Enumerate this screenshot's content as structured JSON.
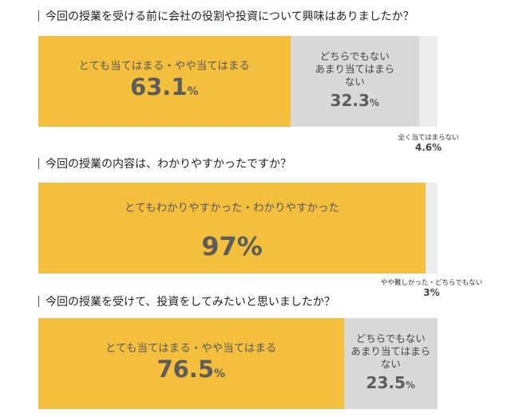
{
  "chart_data": [
    {
      "type": "bar",
      "title": "今回の授業を受ける前に会社の役割や投資について興味はありましたか？",
      "categories": [
        "とても当てはまる・やや当てはまる",
        "どちらでもない あまり当てはまらない",
        "全く当てはまらない"
      ],
      "values": [
        63.1,
        32.3,
        4.6
      ],
      "labels": [
        "63.1",
        "32.3",
        "4.6"
      ],
      "unit": "%",
      "category_lines": [
        [
          "とても当てはまる・やや当てはまる"
        ],
        [
          "どちらでもない",
          "あまり当てはまら",
          "ない"
        ],
        [
          "全く当てはまらない"
        ]
      ],
      "colors": [
        "#f3bf3d",
        "#d9d9d9",
        "#ececec"
      ]
    },
    {
      "type": "bar",
      "title": "今回の授業の内容は、わかりやすかったですか？",
      "categories": [
        "とてもわかりやすかった・わかりやすかった",
        "やや難しかった・どちらでもない"
      ],
      "values": [
        97,
        3
      ],
      "labels": [
        "97",
        "3"
      ],
      "unit": "%",
      "category_lines": [
        [
          "とてもわかりやすかった・わかりやすかった"
        ],
        [
          "やや難しかった・どちらでもない"
        ]
      ],
      "colors": [
        "#f3bf3d",
        "#ececec"
      ]
    },
    {
      "type": "bar",
      "title": "今回の授業を受けて、投資をしてみたいと思いましたか？",
      "categories": [
        "とても当てはまる・やや当てはまる",
        "どちらでもない あまり当てはまらない"
      ],
      "values": [
        76.5,
        23.5
      ],
      "labels": [
        "76.5",
        "23.5"
      ],
      "unit": "%",
      "category_lines": [
        [
          "とても当てはまる・やや当てはまる"
        ],
        [
          "どちらでもない",
          "あまり当てはまら",
          "ない"
        ]
      ],
      "colors": [
        "#f3bf3d",
        "#d9d9d9"
      ]
    }
  ]
}
